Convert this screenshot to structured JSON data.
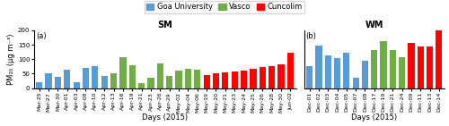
{
  "chart_data": [
    {
      "type": "bar",
      "title": "SM",
      "x_label": "Days (2015)",
      "y_label": "PM₁₀ (μg m⁻³)",
      "annotation": "(a)",
      "categories": [
        "Mar-25",
        "Mar-27",
        "Mar-30",
        "Apr-01",
        "Apr-03",
        "Apr-08",
        "Apr-10",
        "Apr-12",
        "Apr-13",
        "Apr-16",
        "Apr-19",
        "Apr-21",
        "Apr-23",
        "Apr-26",
        "Apr-29",
        "May-02",
        "May-04",
        "May-06",
        "May-19",
        "May-20",
        "May-21",
        "May-23",
        "May-24",
        "May-25",
        "May-26",
        "May-28",
        "May-30",
        "Jun-02"
      ],
      "series": [
        {
          "name": "Goa University",
          "color": "#5B9BD5",
          "values": [
            20,
            50,
            38,
            65,
            22,
            70,
            75,
            42,
            null,
            null,
            null,
            null,
            null,
            null,
            null,
            null,
            null,
            null,
            null,
            null,
            null,
            null,
            null,
            null,
            null,
            null,
            null,
            null
          ]
        },
        {
          "name": "Vasco",
          "color": "#70AD47",
          "values": [
            null,
            null,
            null,
            null,
            null,
            null,
            null,
            null,
            53,
            108,
            80,
            18,
            35,
            84,
            43,
            62,
            68,
            63,
            null,
            null,
            null,
            null,
            null,
            null,
            null,
            null,
            null,
            null
          ]
        },
        {
          "name": "Cuncolim",
          "color": "#FF0000",
          "values": [
            null,
            null,
            null,
            null,
            null,
            null,
            null,
            null,
            null,
            null,
            null,
            null,
            null,
            null,
            null,
            null,
            null,
            null,
            46,
            52,
            55,
            57,
            62,
            68,
            72,
            75,
            83,
            122
          ]
        }
      ],
      "ylim": [
        0,
        200
      ],
      "yticks": [
        0,
        50,
        100,
        150,
        200
      ],
      "legend": "upper center"
    },
    {
      "type": "bar",
      "title": "WM",
      "x_label": "Days (2015)",
      "annotation": "(b)",
      "categories": [
        "Dec-01",
        "Dec-02",
        "Dec-03",
        "Dec-04",
        "Dec-05",
        "Dec-07",
        "Dec-08",
        "Dec-17",
        "Dec-19",
        "Dec-21",
        "Dec-24",
        "Dec-09",
        "Dec-11",
        "Dec-13",
        "Dec-14"
      ],
      "series": [
        {
          "name": "Goa University",
          "color": "#5B9BD5",
          "values": [
            75,
            147,
            113,
            105,
            122,
            35,
            95,
            null,
            null,
            null,
            null,
            null,
            null,
            null,
            null
          ]
        },
        {
          "name": "Vasco",
          "color": "#70AD47",
          "values": [
            null,
            null,
            null,
            null,
            null,
            null,
            null,
            133,
            162,
            133,
            108,
            null,
            null,
            null,
            null
          ]
        },
        {
          "name": "Cuncolim",
          "color": "#FF0000",
          "values": [
            null,
            null,
            null,
            null,
            null,
            null,
            null,
            null,
            null,
            null,
            null,
            155,
            145,
            143,
            200
          ]
        }
      ],
      "ylim": [
        0,
        200
      ],
      "tick_labels": "x"
    }
  ]
}
